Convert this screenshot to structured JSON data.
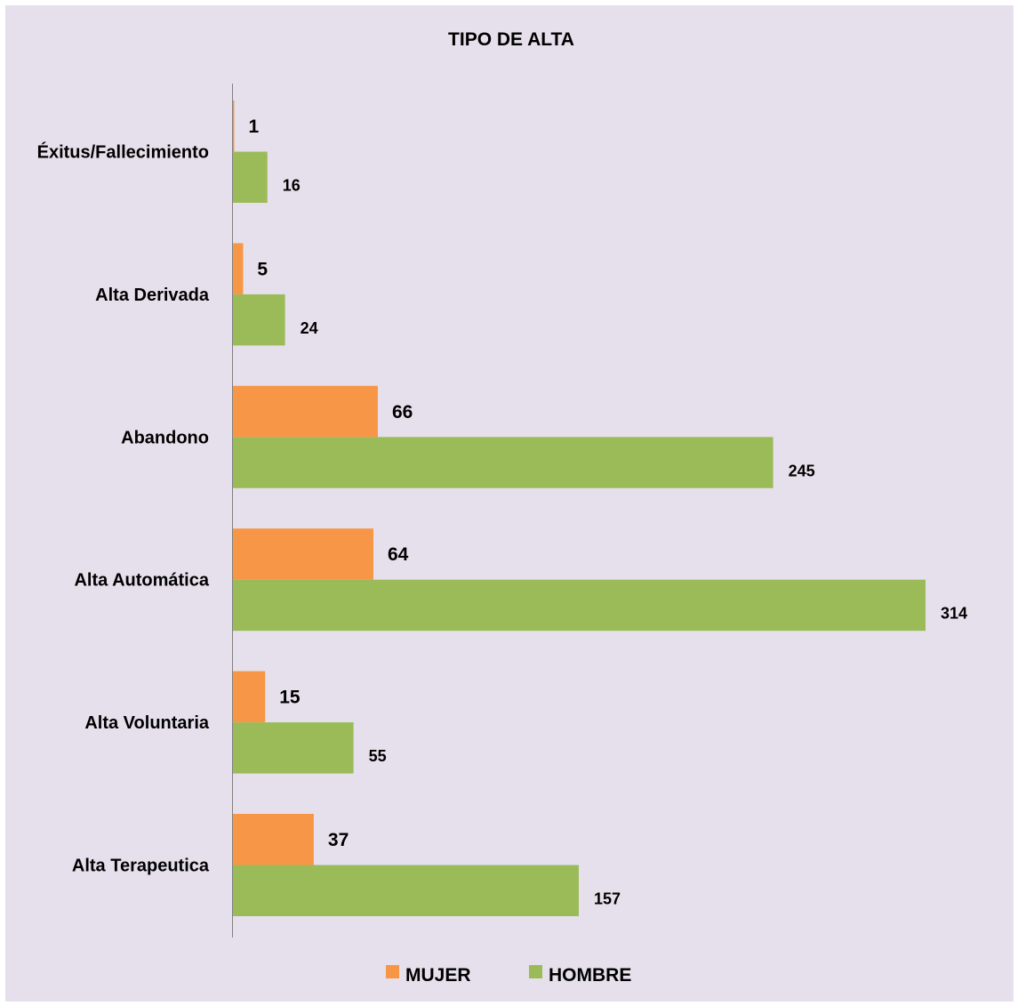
{
  "chart_data": {
    "type": "bar",
    "orientation": "horizontal",
    "title": "TIPO DE ALTA",
    "xlabel": "",
    "ylabel": "",
    "categories": [
      "Éxitus/Fallecimiento",
      "Alta Derivada",
      "Abandono",
      "Alta Automática",
      "Alta Voluntaria",
      "Alta Terapeutica"
    ],
    "series": [
      {
        "name": "MUJER",
        "color": "#f79646",
        "values": [
          1,
          5,
          66,
          64,
          15,
          37
        ]
      },
      {
        "name": "HOMBRE",
        "color": "#9bbb59",
        "values": [
          16,
          24,
          245,
          314,
          55,
          157
        ]
      }
    ],
    "xlim": [
      0,
      314
    ],
    "grid": false,
    "legend_position": "bottom",
    "background": "#e6e0ec",
    "axis_color": "#808080"
  }
}
